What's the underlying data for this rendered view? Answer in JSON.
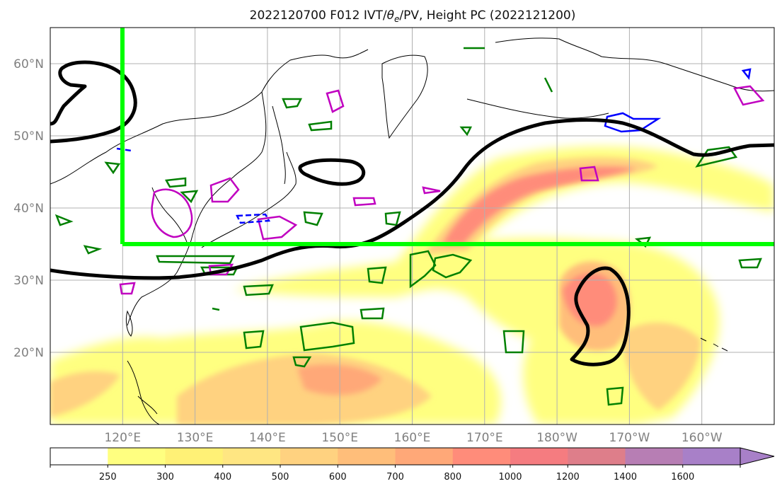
{
  "chart_data": {
    "type": "heatmap",
    "title": "2022120700 F012 IVT/θe/PV, Height PC (2022121200)",
    "title_parts": {
      "prefix": "2022120700 F012 IVT/",
      "theta_symbol": "θ",
      "theta_subscript": "e",
      "suffix": "/PV, Height PC (2022121200)"
    },
    "map_extent": {
      "lon": [
        110,
        210
      ],
      "lat": [
        10,
        65
      ]
    },
    "lat_ticks": [
      {
        "value": 20,
        "label": "20°N"
      },
      {
        "value": 30,
        "label": "30°N"
      },
      {
        "value": 40,
        "label": "40°N"
      },
      {
        "value": 50,
        "label": "50°N"
      },
      {
        "value": 60,
        "label": "60°N"
      }
    ],
    "lon_ticks": [
      {
        "value": 120,
        "label": "120°E"
      },
      {
        "value": 130,
        "label": "130°E"
      },
      {
        "value": 140,
        "label": "140°E"
      },
      {
        "value": 150,
        "label": "150°E"
      },
      {
        "value": 160,
        "label": "160°E"
      },
      {
        "value": 170,
        "label": "170°E"
      },
      {
        "value": 180,
        "label": "180°W"
      },
      {
        "value": 190,
        "label": "170°W"
      },
      {
        "value": 200,
        "label": "160°W"
      }
    ],
    "colorbar": {
      "levels": [
        0,
        250,
        300,
        400,
        500,
        600,
        700,
        800,
        1000,
        1200,
        1400,
        1600,
        1800
      ],
      "labels": [
        "250",
        "300",
        "400",
        "500",
        "600",
        "700",
        "800",
        "1000",
        "1200",
        "1400",
        "1600"
      ],
      "colors": [
        "#ffffff",
        "#ffff80",
        "#fff176",
        "#ffe682",
        "#ffd280",
        "#ffbe7a",
        "#ffa878",
        "#ff8c7a",
        "#f57c80",
        "#de7e8a",
        "#b77eb4",
        "#a880c8"
      ]
    },
    "regions": {
      "ivt_plumes": [
        {
          "name": "north-pacific-ar",
          "lon_range": [
            155,
            210
          ],
          "lat_range": [
            30,
            48
          ],
          "max_ivt": 1000
        },
        {
          "name": "typhoon-core",
          "lon_range": [
            178,
            190
          ],
          "lat_range": [
            18,
            35
          ],
          "max_ivt": 1000
        },
        {
          "name": "tropical-west-pacific",
          "lon_range": [
            110,
            180
          ],
          "lat_range": [
            10,
            26
          ],
          "max_ivt": 700
        }
      ],
      "box": {
        "lon_min": 120,
        "lat_min": 35,
        "color": "#00ff00"
      },
      "height_pc_contour_color": "#000000",
      "theta_e_contour_color": "#008000",
      "pv_contour_colors": [
        "#c000c0",
        "#0000ff"
      ]
    },
    "colors": {
      "grid": "#b0b0b0",
      "coast": "#000000",
      "box": "#00ff00",
      "height": "#000000",
      "theta": "#008000",
      "pv_pos": "#c000c0",
      "pv_neg": "#0000ff"
    }
  }
}
